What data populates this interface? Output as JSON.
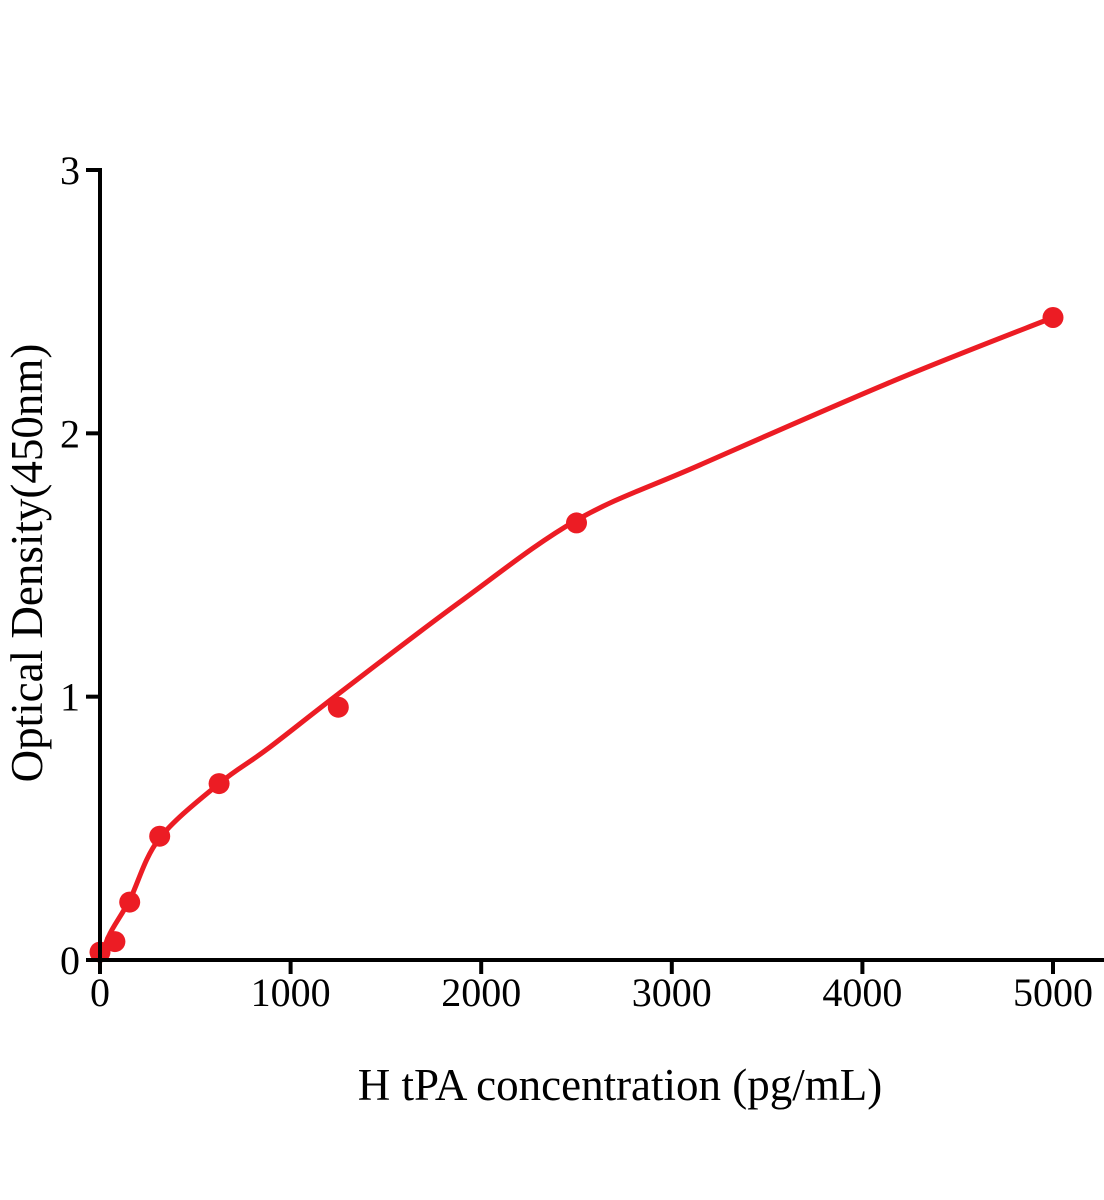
{
  "figure": {
    "background_color": "#ffffff",
    "axis_color": "#000000",
    "accent_color": "#EC1C24"
  },
  "chart_data": {
    "type": "scatter",
    "title": "",
    "xlabel": "H tPA concentration (pg/mL)",
    "ylabel": "Optical Density(450nm)",
    "xlim": [
      0,
      5270
    ],
    "ylim": [
      0,
      3
    ],
    "x_ticks": [
      0,
      1000,
      2000,
      3000,
      4000,
      5000
    ],
    "y_ticks": [
      0,
      1,
      2,
      3
    ],
    "grid": false,
    "legend_position": "none",
    "series": [
      {
        "name": "fit curve",
        "type": "line",
        "color": "#EC1C24",
        "stroke_width": 5,
        "points": [
          [
            0,
            0.0
          ],
          [
            52,
            0.1
          ],
          [
            157,
            0.23
          ],
          [
            310,
            0.46
          ],
          [
            625,
            0.67
          ],
          [
            876,
            0.8
          ],
          [
            1250,
            1.01
          ],
          [
            1889,
            1.36
          ],
          [
            2500,
            1.67
          ],
          [
            3148,
            1.88
          ],
          [
            4166,
            2.2
          ],
          [
            5000,
            2.44
          ]
        ]
      },
      {
        "name": "standard points",
        "type": "scatter",
        "color": "#EC1C24",
        "marker": "circle",
        "marker_radius": 10.5,
        "points": [
          [
            0,
            0.03
          ],
          [
            78,
            0.07
          ],
          [
            156,
            0.22
          ],
          [
            313,
            0.47
          ],
          [
            625,
            0.67
          ],
          [
            1250,
            0.96
          ],
          [
            2500,
            1.66
          ],
          [
            5000,
            2.44
          ]
        ]
      }
    ]
  }
}
